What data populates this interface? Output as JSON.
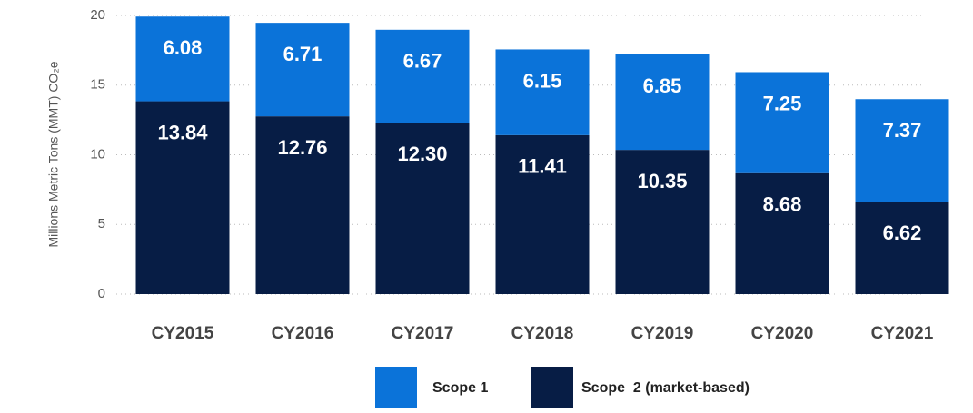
{
  "chart_data": {
    "type": "stacked_bar",
    "y_label": "Millions Metric Tons (MMT) CO₂e",
    "categories": [
      "CY2015",
      "CY2016",
      "CY2017",
      "CY2018",
      "CY2019",
      "CY2020",
      "CY2021"
    ],
    "series": [
      {
        "name": "Scope 1",
        "color": "#0b73d9",
        "values": [
          6.08,
          6.71,
          6.67,
          6.15,
          6.85,
          7.25,
          7.37
        ],
        "value_labels": [
          "6.08",
          "6.71",
          "6.67",
          "6.15",
          "6.85",
          "7.25",
          "7.37"
        ]
      },
      {
        "name": "Scope  2 (market-based)",
        "color": "#071d45",
        "values": [
          13.84,
          12.76,
          12.3,
          11.41,
          10.35,
          8.68,
          6.62
        ],
        "value_labels": [
          "13.84",
          "12.76",
          "12.30",
          "11.41",
          "10.35",
          "8.68",
          "6.62"
        ]
      }
    ],
    "ylim": [
      0,
      20
    ],
    "yticks": [
      0,
      5,
      10,
      15,
      20
    ],
    "grid": true
  }
}
